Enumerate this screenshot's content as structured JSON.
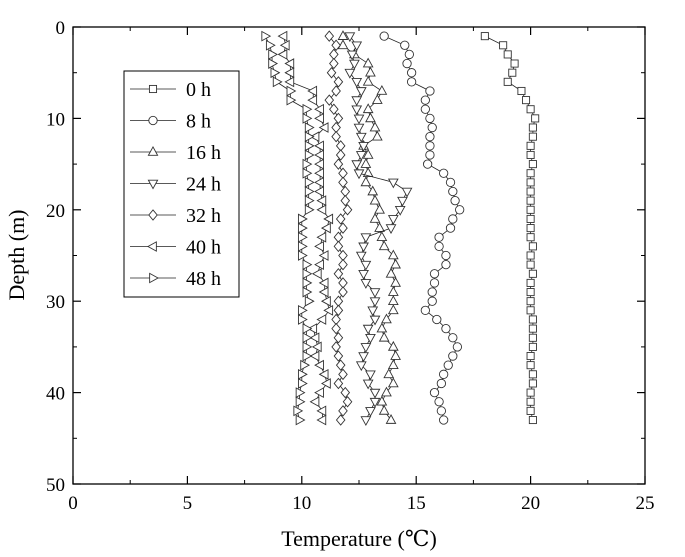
{
  "chart_data": {
    "type": "scatter",
    "xlabel": "Temperature (℃)",
    "ylabel": "Depth (m)",
    "xlim": [
      0,
      25
    ],
    "ylim": [
      50,
      0
    ],
    "y_inverted": true,
    "x_axis_position": "top",
    "xticks": [
      0,
      5,
      10,
      15,
      20,
      25
    ],
    "yticks": [
      0,
      10,
      20,
      30,
      40,
      50
    ],
    "grid": false,
    "legend_position": "top-left",
    "depths": [
      1,
      2,
      3,
      4,
      5,
      6,
      7,
      8,
      9,
      10,
      11,
      12,
      13,
      14,
      15,
      16,
      17,
      18,
      19,
      20,
      21,
      22,
      23,
      24,
      25,
      26,
      27,
      28,
      29,
      30,
      31,
      32,
      33,
      34,
      35,
      36,
      37,
      38,
      39,
      40,
      41,
      42,
      43
    ],
    "series": [
      {
        "name": "0 h",
        "marker": "square",
        "values": [
          18.0,
          18.8,
          19.0,
          19.3,
          19.2,
          19.0,
          19.6,
          19.8,
          20.0,
          20.2,
          20.1,
          20.1,
          20.0,
          20.0,
          20.1,
          20.0,
          20.0,
          20.0,
          20.0,
          20.0,
          20.0,
          20.0,
          20.0,
          20.1,
          20.0,
          20.0,
          20.1,
          20.0,
          20.0,
          20.0,
          20.0,
          20.1,
          20.1,
          20.1,
          20.1,
          20.0,
          20.0,
          20.1,
          20.1,
          20.0,
          20.0,
          20.0,
          20.1
        ]
      },
      {
        "name": "8 h",
        "marker": "circle",
        "values": [
          13.6,
          14.5,
          14.7,
          14.6,
          14.8,
          14.8,
          15.6,
          15.4,
          15.4,
          15.6,
          15.7,
          15.6,
          15.6,
          15.6,
          15.5,
          16.2,
          16.5,
          16.6,
          16.7,
          16.9,
          16.6,
          16.5,
          16.0,
          16.0,
          16.3,
          16.3,
          15.8,
          15.8,
          15.7,
          15.7,
          15.4,
          15.9,
          16.3,
          16.6,
          16.8,
          16.6,
          16.4,
          16.2,
          16.1,
          15.8,
          16.0,
          16.1,
          16.2
        ]
      },
      {
        "name": "16 h",
        "marker": "triangle-up",
        "values": [
          11.8,
          11.8,
          12.3,
          12.9,
          13.0,
          12.9,
          13.5,
          13.3,
          12.9,
          13.0,
          13.2,
          13.3,
          12.7,
          12.9,
          12.8,
          12.9,
          12.8,
          13.1,
          13.2,
          13.4,
          13.2,
          13.4,
          13.5,
          13.6,
          14.0,
          14.1,
          13.9,
          14.1,
          14.0,
          14.0,
          14.0,
          13.7,
          13.5,
          13.6,
          14.0,
          14.1,
          14.0,
          13.8,
          14.0,
          13.7,
          13.5,
          13.6,
          13.9
        ]
      },
      {
        "name": "24 h",
        "marker": "triangle-down",
        "values": [
          12.1,
          12.4,
          12.2,
          12.3,
          12.1,
          12.4,
          12.6,
          12.4,
          12.4,
          12.5,
          12.5,
          12.6,
          12.7,
          12.6,
          12.4,
          12.5,
          14.0,
          14.6,
          14.4,
          14.3,
          14.0,
          13.9,
          12.8,
          12.7,
          12.6,
          12.8,
          12.7,
          12.8,
          13.2,
          13.2,
          13.1,
          13.2,
          12.9,
          13.0,
          12.8,
          12.7,
          12.6,
          13.0,
          12.9,
          13.2,
          13.2,
          13.0,
          12.8
        ]
      },
      {
        "name": "32 h",
        "marker": "diamond",
        "values": [
          11.2,
          11.5,
          11.4,
          11.4,
          11.3,
          11.6,
          11.5,
          11.2,
          11.4,
          11.6,
          11.5,
          11.5,
          11.7,
          11.7,
          11.6,
          11.8,
          11.8,
          11.9,
          11.9,
          12.0,
          11.7,
          11.8,
          11.6,
          11.6,
          11.8,
          11.8,
          11.6,
          11.8,
          11.8,
          11.6,
          11.6,
          11.5,
          11.5,
          11.6,
          11.5,
          11.6,
          11.7,
          11.8,
          11.6,
          11.9,
          12.0,
          11.8,
          11.7
        ]
      },
      {
        "name": "40 h",
        "marker": "triangle-left",
        "values": [
          9.2,
          9.3,
          9.2,
          9.5,
          9.5,
          9.5,
          10.5,
          10.5,
          10.8,
          10.8,
          11.0,
          10.6,
          10.8,
          10.8,
          10.8,
          10.8,
          10.8,
          10.8,
          10.9,
          10.9,
          11.2,
          11.1,
          10.9,
          10.8,
          11.0,
          10.8,
          10.7,
          11.0,
          11.0,
          11.1,
          11.2,
          10.9,
          10.5,
          10.6,
          10.7,
          10.6,
          10.8,
          11.0,
          11.1,
          10.8,
          10.6,
          10.9,
          10.9
        ]
      },
      {
        "name": "48 h",
        "marker": "triangle-right",
        "values": [
          8.4,
          8.6,
          8.7,
          8.7,
          8.8,
          8.9,
          9.5,
          9.5,
          10.2,
          10.2,
          10.3,
          10.3,
          10.3,
          10.3,
          10.2,
          10.2,
          10.3,
          10.3,
          10.3,
          10.3,
          10.0,
          10.0,
          10.0,
          10.0,
          10.0,
          10.2,
          10.2,
          10.2,
          10.2,
          10.3,
          10.0,
          10.0,
          10.2,
          10.2,
          10.2,
          10.2,
          10.1,
          10.0,
          10.0,
          9.9,
          9.9,
          9.8,
          9.9
        ]
      }
    ]
  }
}
